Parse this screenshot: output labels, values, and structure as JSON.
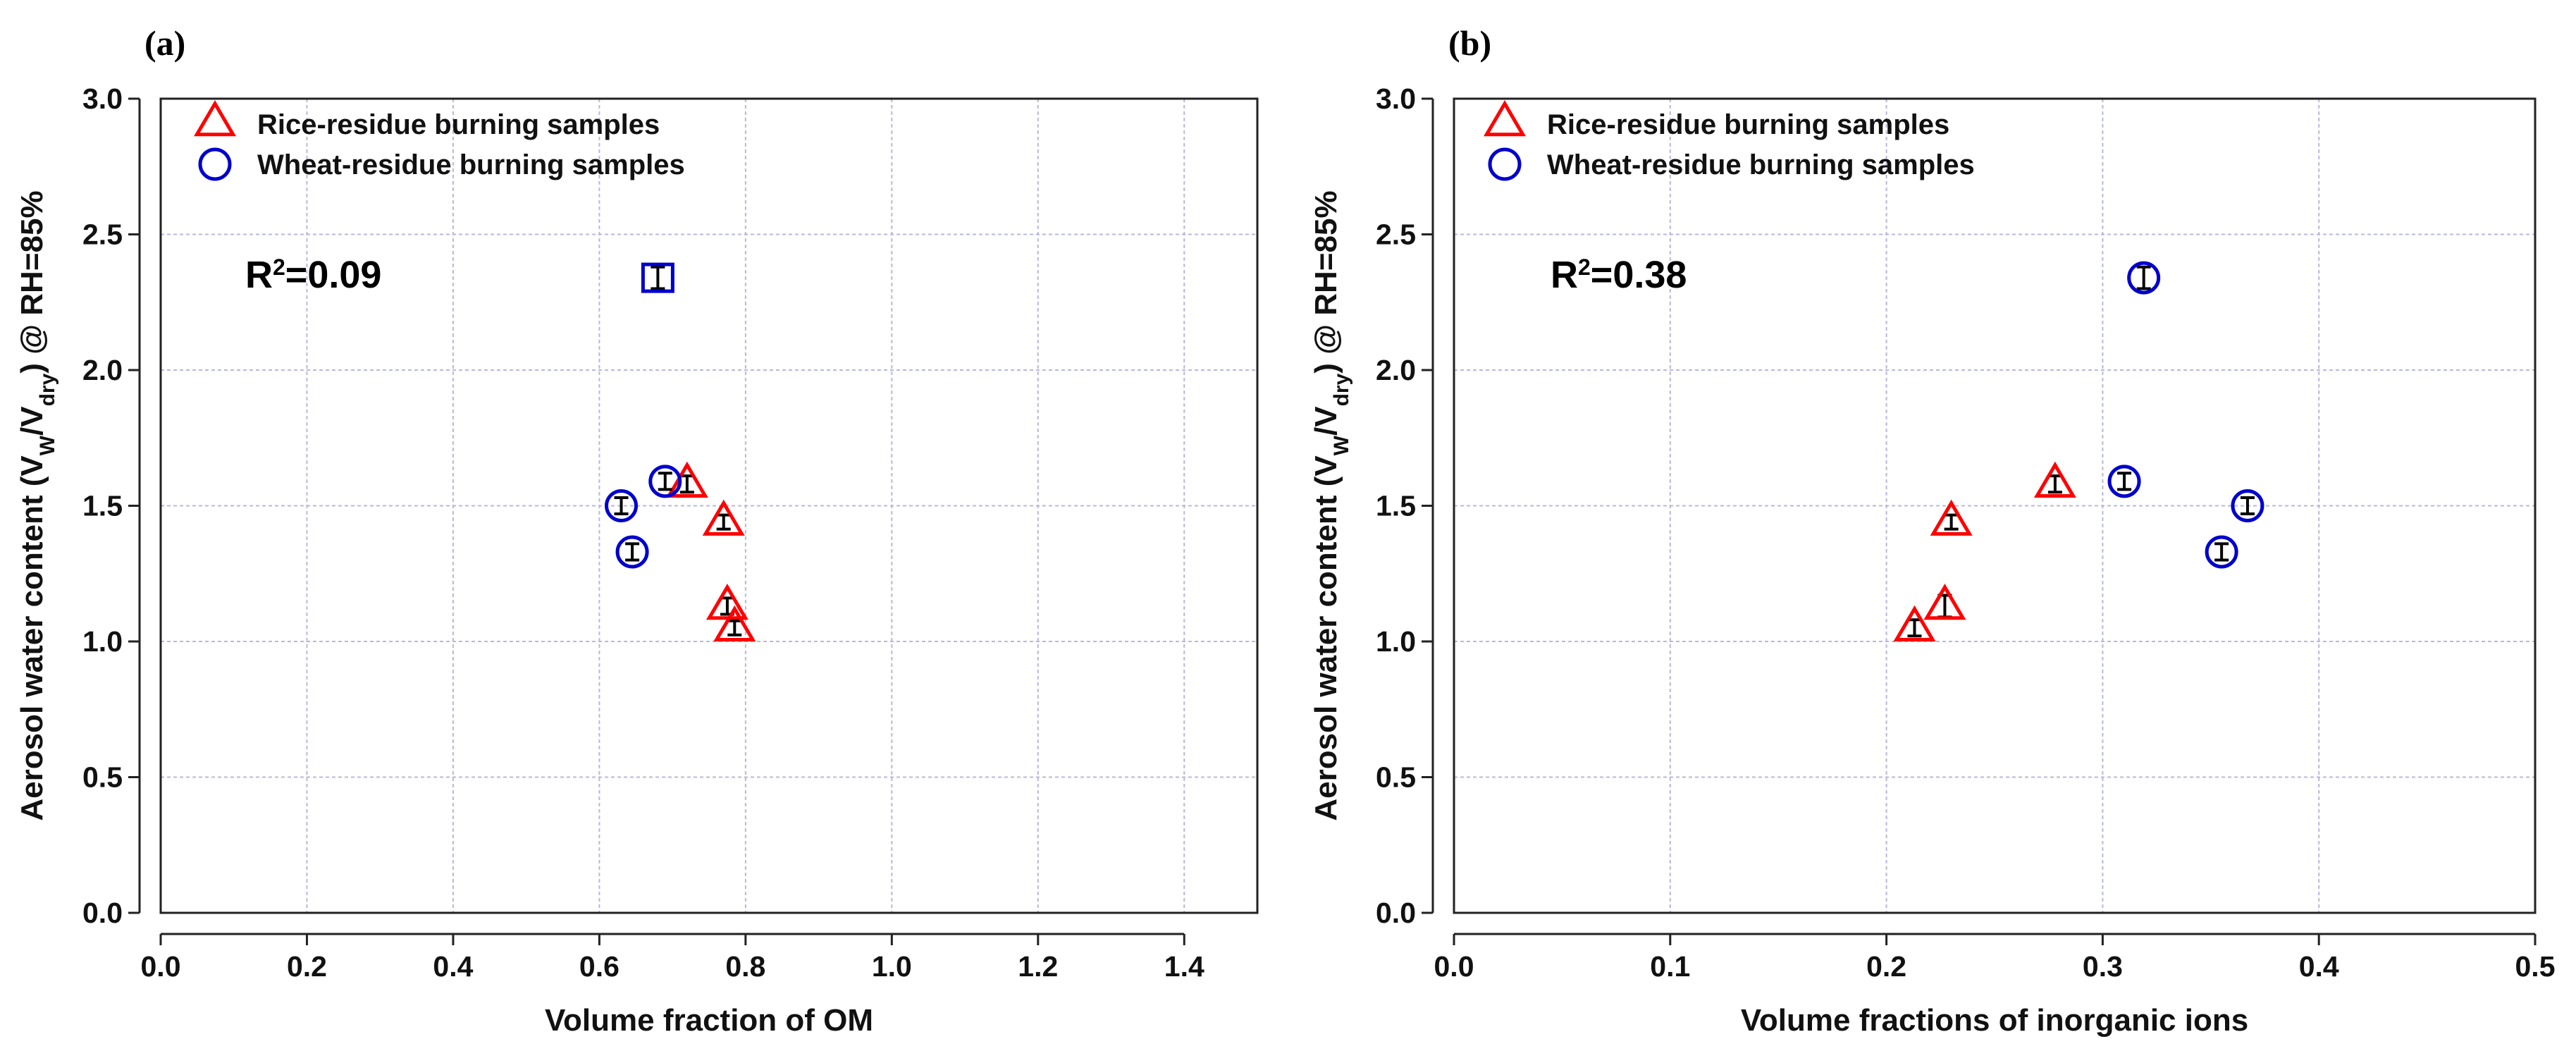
{
  "chart_data": [
    {
      "type": "scatter",
      "panel_label": "(a)",
      "xlabel": "Volume fraction of OM",
      "ylabel_parts": [
        "Aerosol water content (V",
        "W",
        "/V",
        "dry",
        ") @ RH=85%"
      ],
      "xlim": [
        0,
        1.5
      ],
      "ylim": [
        0,
        3.0
      ],
      "xticks": [
        0.0,
        0.2,
        0.4,
        0.6,
        0.8,
        1.0,
        1.2,
        1.4
      ],
      "xtick_labels": [
        "0.0",
        "0.2",
        "0.4",
        "0.6",
        "0.8",
        "1.0",
        "1.2",
        "1.4"
      ],
      "yticks": [
        0.0,
        0.5,
        1.0,
        1.5,
        2.0,
        2.5,
        3.0
      ],
      "ytick_labels": [
        "0.0",
        "0.5",
        "1.0",
        "1.5",
        "2.0",
        "2.5",
        "3.0"
      ],
      "grid": true,
      "legend_location": "top-left",
      "annotation": {
        "prefix": "R",
        "sup": "2",
        "suffix": "=0.09"
      },
      "series": [
        {
          "name": "Rice-residue burning samples",
          "marker": "triangle",
          "color": "#ff0000",
          "points": [
            {
              "x": 0.72,
              "y": 1.58,
              "err": 0.03
            },
            {
              "x": 0.77,
              "y": 1.44,
              "err": 0.02
            },
            {
              "x": 0.775,
              "y": 1.13,
              "err": 0.03
            },
            {
              "x": 0.785,
              "y": 1.05,
              "err": 0.02
            }
          ]
        },
        {
          "name": "Wheat-residue burning samples",
          "marker": "circle",
          "color": "#0000cc",
          "points": [
            {
              "x": 0.68,
              "y": 2.34,
              "err": 0.04,
              "square": true
            },
            {
              "x": 0.69,
              "y": 1.59,
              "err": 0.03
            },
            {
              "x": 0.63,
              "y": 1.5,
              "err": 0.03
            },
            {
              "x": 0.645,
              "y": 1.33,
              "err": 0.03
            }
          ]
        }
      ]
    },
    {
      "type": "scatter",
      "panel_label": "(b)",
      "xlabel": "Volume fractions of inorganic ions",
      "ylabel_parts": [
        "Aerosol water content (V",
        "W",
        "/V",
        "dry",
        ") @ RH=85%"
      ],
      "xlim": [
        0,
        0.5
      ],
      "ylim": [
        0,
        3.0
      ],
      "xticks": [
        0.0,
        0.1,
        0.2,
        0.3,
        0.4,
        0.5
      ],
      "xtick_labels": [
        "0.0",
        "0.1",
        "0.2",
        "0.3",
        "0.4",
        "0.5"
      ],
      "yticks": [
        0.0,
        0.5,
        1.0,
        1.5,
        2.0,
        2.5,
        3.0
      ],
      "ytick_labels": [
        "0.0",
        "0.5",
        "1.0",
        "1.5",
        "2.0",
        "2.5",
        "3.0"
      ],
      "grid": true,
      "legend_location": "top-left",
      "annotation": {
        "prefix": "R",
        "sup": "2",
        "suffix": "=0.38"
      },
      "series": [
        {
          "name": "Rice-residue burning samples",
          "marker": "triangle",
          "color": "#ff0000",
          "points": [
            {
              "x": 0.278,
              "y": 1.58,
              "err": 0.03
            },
            {
              "x": 0.23,
              "y": 1.44,
              "err": 0.02
            },
            {
              "x": 0.227,
              "y": 1.13,
              "err": 0.04
            },
            {
              "x": 0.213,
              "y": 1.05,
              "err": 0.03
            }
          ]
        },
        {
          "name": "Wheat-residue burning samples",
          "marker": "circle",
          "color": "#0000cc",
          "points": [
            {
              "x": 0.319,
              "y": 2.34,
              "err": 0.04
            },
            {
              "x": 0.31,
              "y": 1.59,
              "err": 0.03
            },
            {
              "x": 0.367,
              "y": 1.5,
              "err": 0.03
            },
            {
              "x": 0.355,
              "y": 1.33,
              "err": 0.03
            }
          ]
        }
      ]
    }
  ]
}
